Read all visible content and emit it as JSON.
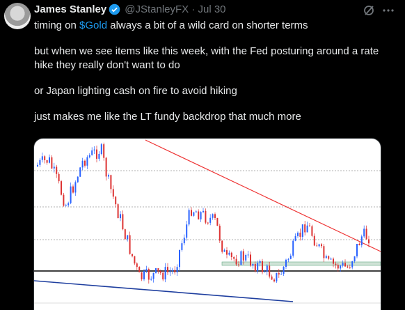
{
  "author": {
    "name": "James Stanley",
    "meta": "@JStanleyFX · Jul 30"
  },
  "tweet": {
    "line1": {
      "before": "timing on ",
      "cashtag": "$Gold",
      "after": " always a bit of a wild card on shorter terms"
    },
    "paragraphs": [
      "but when we see items like this week, with the Fed posturing around a rate hike they really don't want to do",
      "or Japan lighting cash on fire to avoid hiking",
      "just makes me like the LT fundy backdrop that much more"
    ]
  }
}
